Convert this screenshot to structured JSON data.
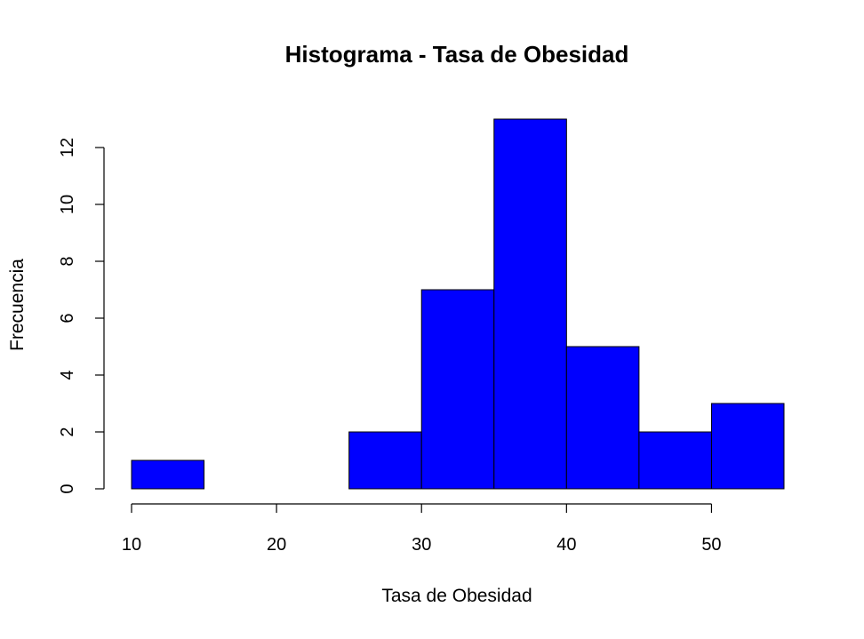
{
  "chart_data": {
    "type": "bar",
    "subtype": "histogram",
    "title": "Histograma - Tasa de Obesidad",
    "xlabel": "Tasa de Obesidad",
    "ylabel": "Frecuencia",
    "bins": [
      {
        "start": 10,
        "end": 15,
        "count": 1
      },
      {
        "start": 15,
        "end": 20,
        "count": 0
      },
      {
        "start": 20,
        "end": 25,
        "count": 0
      },
      {
        "start": 25,
        "end": 30,
        "count": 2
      },
      {
        "start": 30,
        "end": 35,
        "count": 7
      },
      {
        "start": 35,
        "end": 40,
        "count": 13
      },
      {
        "start": 40,
        "end": 45,
        "count": 5
      },
      {
        "start": 45,
        "end": 50,
        "count": 2
      },
      {
        "start": 50,
        "end": 55,
        "count": 3
      }
    ],
    "xlim": [
      10,
      55
    ],
    "ylim": [
      0,
      13
    ],
    "x_ticks": [
      10,
      20,
      30,
      40,
      50
    ],
    "y_ticks": [
      0,
      2,
      4,
      6,
      8,
      10,
      12
    ],
    "bar_color": "#0000ff",
    "border_color": "#000000",
    "grid": false,
    "legend": "none"
  }
}
